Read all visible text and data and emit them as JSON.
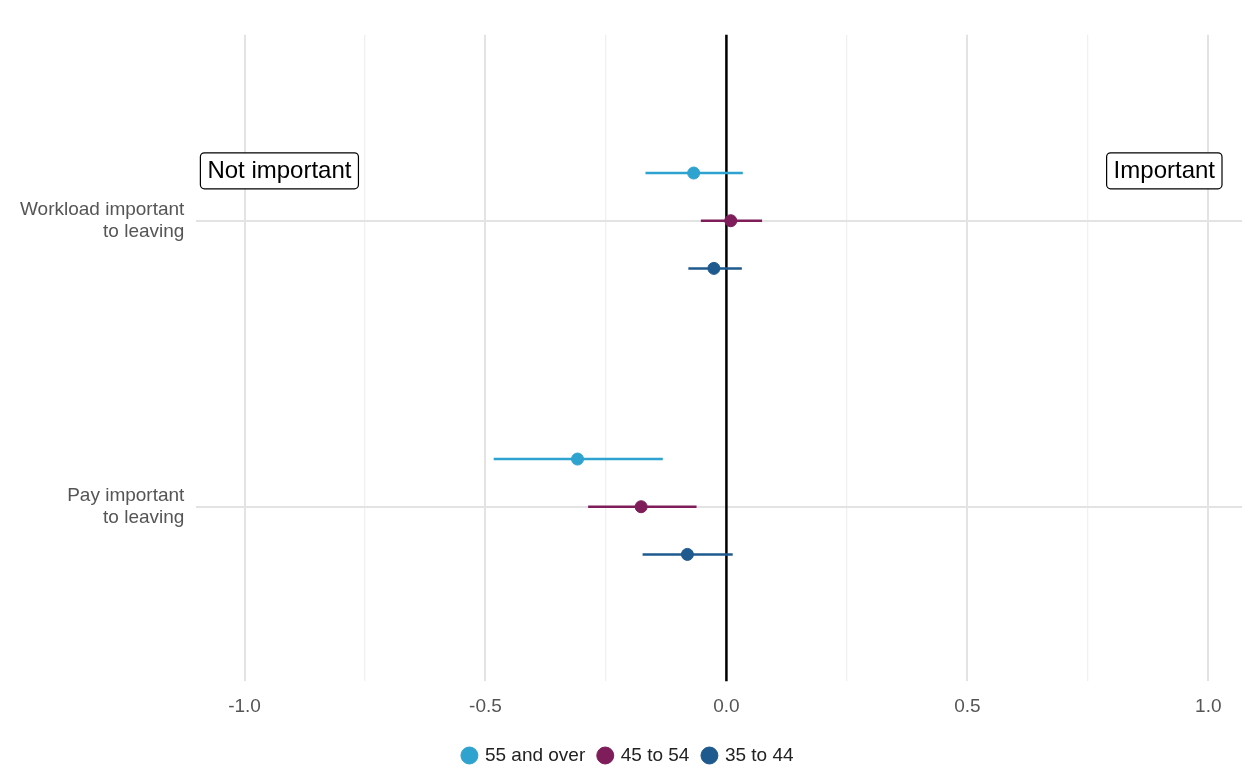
{
  "chart_data": {
    "type": "scatter",
    "orientation": "horizontal",
    "categories": [
      "Workload important\nto leaving",
      "Pay important\nto leaving"
    ],
    "series": [
      {
        "name": "55 and over",
        "color": "#2ea3cf",
        "values": [
          -0.068,
          -0.309
        ],
        "errors": [
          [
            -0.168,
            0.034
          ],
          [
            -0.483,
            -0.132
          ]
        ]
      },
      {
        "name": "45 to 54",
        "color": "#7f1d5a",
        "values": [
          0.009,
          -0.177
        ],
        "errors": [
          [
            -0.053,
            0.074
          ],
          [
            -0.287,
            -0.062
          ]
        ]
      },
      {
        "name": "35 to 44",
        "color": "#1f5a8f",
        "values": [
          -0.026,
          -0.081
        ],
        "errors": [
          [
            -0.079,
            0.032
          ],
          [
            -0.174,
            0.013
          ]
        ]
      }
    ],
    "xlim": [
      -1.1,
      1.07
    ],
    "xticks": [
      {
        "value": -1,
        "label": "-1.0"
      },
      {
        "value": -0.75,
        "label": null
      },
      {
        "value": -0.5,
        "label": "-0.5"
      },
      {
        "value": -0.25,
        "label": null
      },
      {
        "value": 0,
        "label": "0.0"
      },
      {
        "value": 0.25,
        "label": null
      },
      {
        "value": 0.5,
        "label": "0.5"
      },
      {
        "value": 0.75,
        "label": null
      },
      {
        "value": 1,
        "label": "1.0"
      }
    ],
    "ref_lines": [
      {
        "axis": "x",
        "value": 0,
        "color": "#000000"
      }
    ],
    "annotations": [
      "Not important",
      "Important"
    ],
    "grid": true,
    "legend": "bottom",
    "marker": "circle"
  }
}
